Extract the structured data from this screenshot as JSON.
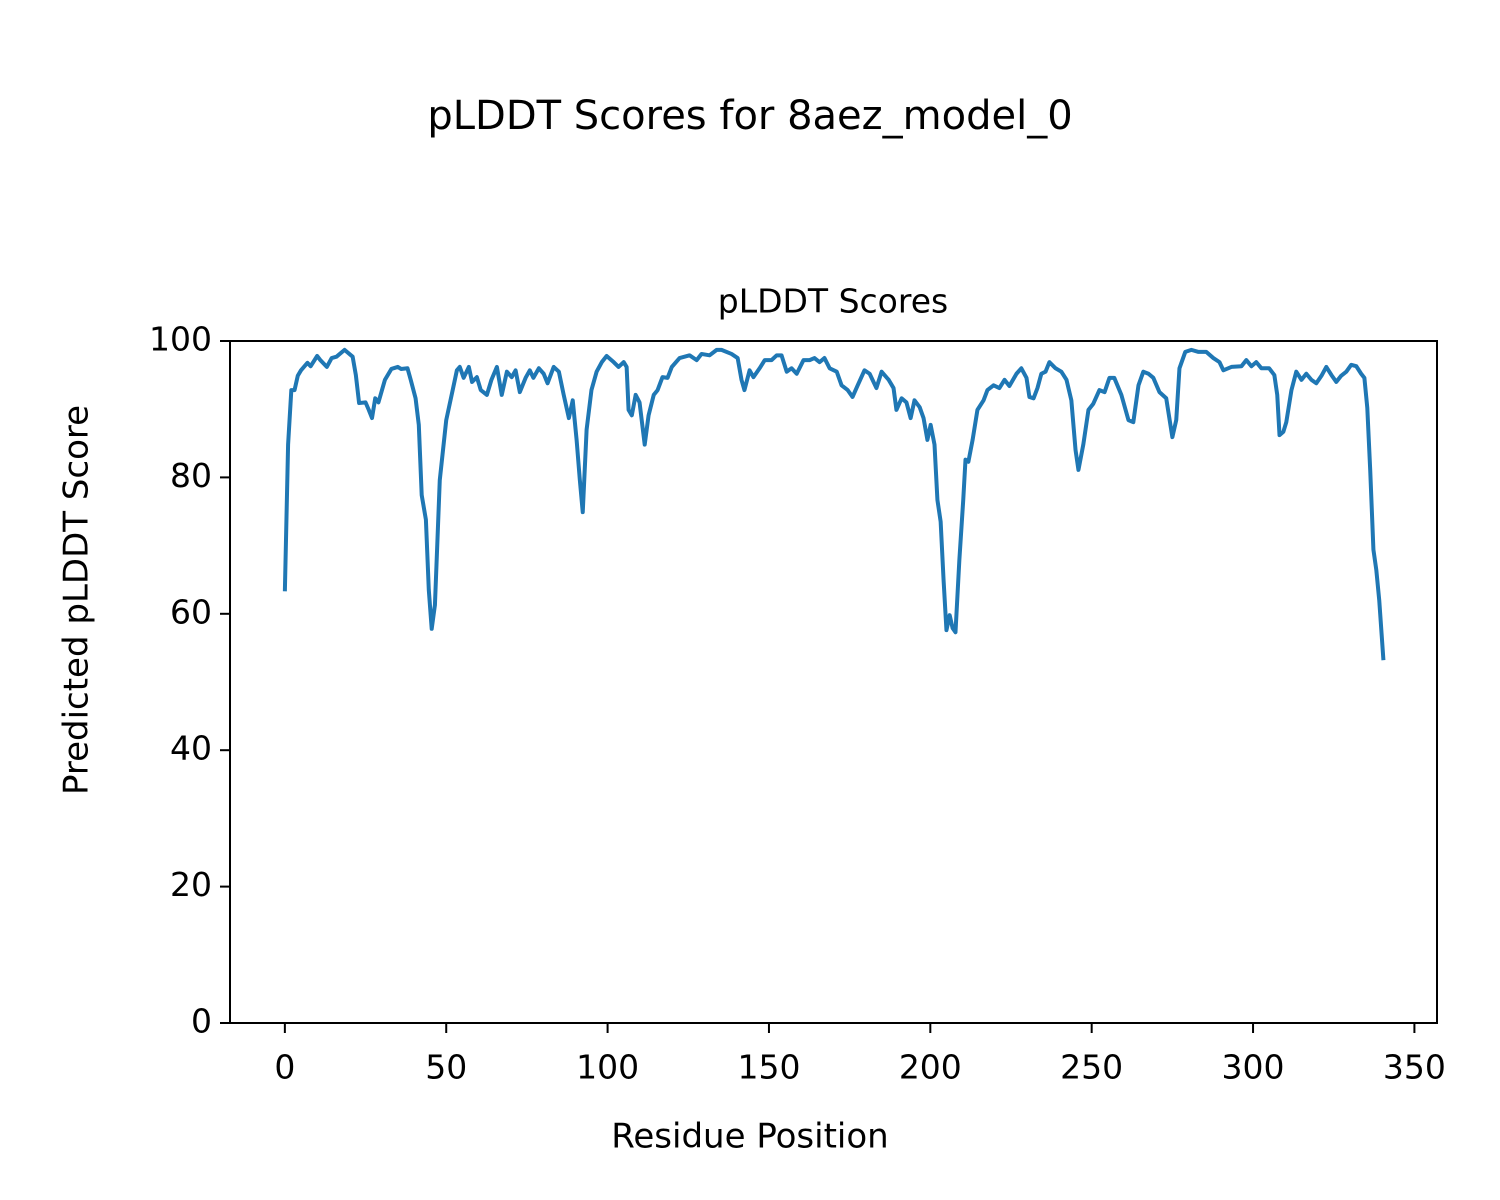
{
  "chart_data": {
    "type": "line",
    "title": "pLDDT Scores for 8aez_model_0",
    "subtitle": "pLDDT Scores",
    "x_label": "Residue Position",
    "y_label": "Predicted pLDDT Score",
    "xlim": [
      -17,
      357
    ],
    "ylim": [
      0,
      100
    ],
    "xticks": [
      0,
      50,
      100,
      150,
      200,
      250,
      300,
      350
    ],
    "yticks": [
      0,
      20,
      40,
      60,
      80,
      100
    ],
    "grid": false,
    "series": [
      {
        "color": "#1f77b4",
        "x": [
          0,
          1,
          2,
          3,
          4,
          5,
          7,
          8,
          10,
          11,
          13,
          14.5,
          16,
          18.5,
          21,
          22,
          23,
          25,
          26,
          27,
          28,
          29,
          31,
          33,
          35,
          36,
          38,
          39,
          40.5,
          41.5,
          42.4,
          43.7,
          44.6,
          45.5,
          46.5,
          48,
          50,
          52,
          53.3,
          54.2,
          55.4,
          57,
          58,
          59.5,
          60.7,
          62.6,
          64,
          65.7,
          67.2,
          68.8,
          70.3,
          71.5,
          72.8,
          74.6,
          75.9,
          77,
          78.7,
          80.2,
          81.4,
          83.3,
          84.9,
          86.4,
          88,
          89.2,
          90.4,
          91.4,
          92.3,
          93.5,
          95,
          96.6,
          98.2,
          99.7,
          101.9,
          103.4,
          105,
          105.9,
          106.5,
          107.5,
          108.7,
          109.9,
          111.5,
          112.7,
          114.3,
          115.5,
          117,
          118.6,
          119.9,
          122.3,
          125.4,
          127.6,
          129.1,
          131.6,
          133.8,
          135.3,
          138.4,
          140.3,
          141.5,
          142.4,
          144,
          145.2,
          147.1,
          148.7,
          150.8,
          152.4,
          153.9,
          155.5,
          157,
          158.6,
          160.7,
          162.6,
          164.1,
          165.7,
          167.2,
          168.8,
          171,
          172.5,
          174.4,
          175.9,
          177.5,
          179.6,
          181.2,
          183.3,
          184.9,
          187.1,
          188.6,
          189.5,
          191.1,
          192.6,
          193.9,
          195.1,
          196.7,
          197.9,
          199.1,
          200.1,
          201.3,
          202.2,
          203.2,
          204.1,
          205,
          206,
          206.9,
          207.8,
          209,
          210.2,
          210.9,
          211.8,
          213.1,
          214.6,
          216.5,
          217.7,
          219.6,
          221.4,
          223,
          224.5,
          226.7,
          228.2,
          229.8,
          230.7,
          232,
          233.2,
          234.4,
          235.7,
          236.9,
          238.8,
          240.6,
          242.2,
          243.7,
          245,
          245.9,
          247.4,
          249,
          250.5,
          252.4,
          254,
          255.5,
          257,
          259.2,
          261.4,
          262.9,
          264.5,
          266,
          267.6,
          269.1,
          271,
          273.1,
          275,
          276.2,
          277.2,
          279,
          280.9,
          283.1,
          285.5,
          287.7,
          289.6,
          290.8,
          293.3,
          296.4,
          297.9,
          299.5,
          301,
          302.6,
          305,
          306.6,
          307.5,
          308.2,
          309.4,
          310.3,
          311.9,
          313.4,
          315,
          316.5,
          318.1,
          319.6,
          321.2,
          322.7,
          324.3,
          325.8,
          327.3,
          328.9,
          330.4,
          332,
          333.5,
          334.5,
          335.4,
          336.3,
          337.3,
          338.2,
          339.1,
          340.4
        ],
        "values": [
          63.3,
          84.8,
          92.8,
          92.8,
          94.9,
          95.7,
          96.8,
          96.3,
          97.8,
          97.2,
          96.2,
          97.5,
          97.7,
          98.7,
          97.7,
          95,
          90.9,
          91,
          89.9,
          88.7,
          91.6,
          91,
          94.3,
          95.9,
          96.2,
          95.9,
          96,
          94.3,
          91.6,
          87.7,
          77.4,
          73.8,
          63.5,
          57.8,
          61.3,
          79.6,
          88.4,
          92.8,
          95.7,
          96.2,
          94.6,
          96.2,
          94,
          94.7,
          92.8,
          92.1,
          94.3,
          96.2,
          92.1,
          95.5,
          94.7,
          95.7,
          92.5,
          94.6,
          95.7,
          94.6,
          96,
          95.2,
          93.8,
          96.2,
          95.5,
          92.1,
          88.7,
          91.3,
          85.5,
          79.6,
          74.9,
          87,
          92.8,
          95.5,
          96.9,
          97.8,
          96.9,
          96.2,
          96.9,
          96.2,
          89.9,
          89.1,
          92.1,
          91,
          84.8,
          89.1,
          92.1,
          92.8,
          94.7,
          94.6,
          96.2,
          97.5,
          97.9,
          97.2,
          98.1,
          97.9,
          98.7,
          98.7,
          98.1,
          97.5,
          94.3,
          92.8,
          95.7,
          94.7,
          96,
          97.2,
          97.2,
          97.9,
          97.9,
          95.5,
          96,
          95.2,
          97.2,
          97.2,
          97.5,
          96.9,
          97.5,
          96,
          95.5,
          93.5,
          92.8,
          91.8,
          93.5,
          95.7,
          95.2,
          93.1,
          95.5,
          94.3,
          93.1,
          89.9,
          91.6,
          91,
          88.7,
          91.3,
          90.3,
          88.7,
          85.5,
          87.7,
          84.8,
          76.7,
          73.5,
          65,
          57.6,
          59.8,
          57.9,
          57.3,
          67.9,
          76.7,
          82.6,
          82.3,
          85.5,
          89.9,
          91.3,
          92.8,
          93.5,
          93.1,
          94.3,
          93.4,
          95.2,
          96,
          94.6,
          91.8,
          91.6,
          93.1,
          95.2,
          95.5,
          96.9,
          96,
          95.5,
          94.3,
          91.3,
          84,
          81.1,
          84.8,
          89.9,
          90.8,
          92.8,
          92.5,
          94.6,
          94.6,
          92.1,
          88.4,
          88.1,
          93.5,
          95.5,
          95.2,
          94.6,
          92.5,
          91.6,
          85.9,
          88.4,
          96,
          98.4,
          98.7,
          98.4,
          98.4,
          97.5,
          96.9,
          95.7,
          96.2,
          96.3,
          97.2,
          96.3,
          96.9,
          96,
          96,
          95,
          92.1,
          86.2,
          86.7,
          88.1,
          92.8,
          95.5,
          94.3,
          95.2,
          94.3,
          93.8,
          94.9,
          96.2,
          95,
          94,
          94.9,
          95.5,
          96.5,
          96.3,
          95.2,
          94.6,
          90.2,
          81.1,
          69.4,
          66.4,
          62,
          53.2
        ]
      }
    ]
  }
}
